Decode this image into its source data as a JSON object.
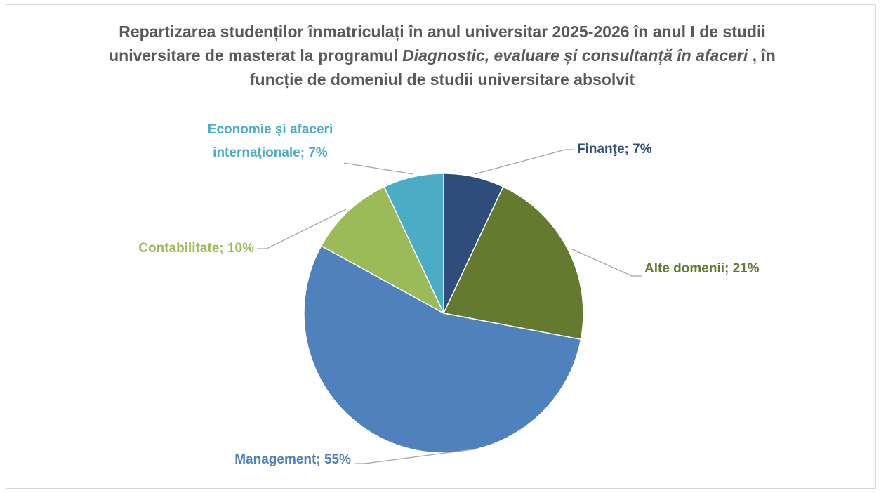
{
  "chart_data": {
    "type": "pie",
    "title": [
      "Repartizarea studenților înmatriculați în anul universitar 2025-2026 în anul I de studii universitare de masterat la programul ",
      "Diagnostic, evaluare și consultanță în afaceri",
      " , în funcție de domeniul de studii universitare absolvit"
    ],
    "title_italic": [
      false,
      true,
      false
    ],
    "categories": [
      "Finanţe",
      "Alte domenii",
      "Management",
      "Contabilitate",
      "Economie şi afaceri internaţionale"
    ],
    "values": [
      7,
      21,
      55,
      10,
      7
    ],
    "value_labels": [
      "Finanţe; 7%",
      "Alte domenii; 21%",
      "Management; 55%",
      "Contabilitate; 10%",
      "Economie şi afaceri internaţionale; 7%"
    ],
    "colors": [
      "#2e4d7b",
      "#637a2f",
      "#4f81bd",
      "#9bbb59",
      "#4bacc6"
    ]
  }
}
